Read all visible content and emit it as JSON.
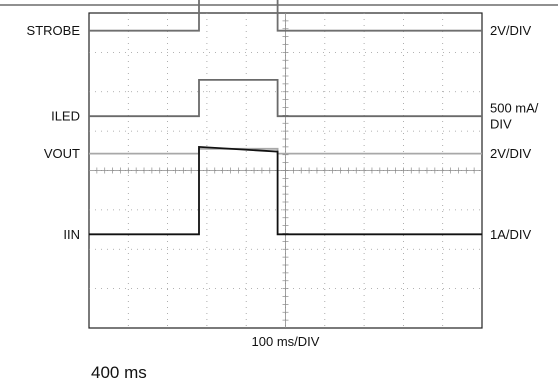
{
  "chart_data": {
    "type": "line",
    "grid": true,
    "x_unit": "ms",
    "xlim": [
      0,
      1000
    ],
    "x_divisions": 10,
    "y_divisions": 8,
    "x_label": "100 ms/DIV",
    "time_annotation": "400 ms",
    "channels": [
      {
        "label": "STROBE",
        "scale": "2V/DIV",
        "color": "#6f6f6f",
        "segments": [
          {
            "x": [
              0,
              280,
              280,
              480,
              480,
              1000
            ],
            "y": [
              7.55,
              7.55,
              9.4,
              9.4,
              7.55,
              7.55
            ]
          },
          {
            "x": [
              280,
              480
            ],
            "y": [
              9.1,
              9.1
            ]
          }
        ]
      },
      {
        "label": "ILED",
        "scale": "500 mA/\nDIV",
        "color": "#6a6a6a",
        "segments": [
          {
            "x": [
              0,
              280,
              280,
              480,
              480,
              1000
            ],
            "y": [
              5.38,
              5.38,
              6.3,
              6.3,
              5.38,
              5.38
            ]
          }
        ]
      },
      {
        "label": "VOUT",
        "scale": "2V/DIV",
        "color": "#a8a8a8",
        "segments": [
          {
            "x": [
              0,
              280,
              280,
              480,
              480,
              1000
            ],
            "y": [
              4.43,
              4.43,
              4.55,
              4.55,
              4.43,
              4.43
            ]
          }
        ]
      },
      {
        "label": "IIN",
        "scale": "1A/DIV",
        "color": "#111111",
        "segments": [
          {
            "x": [
              0,
              280,
              280,
              480,
              480,
              1000
            ],
            "y": [
              2.38,
              2.38,
              4.6,
              4.48,
              2.38,
              2.38
            ]
          }
        ]
      }
    ]
  }
}
